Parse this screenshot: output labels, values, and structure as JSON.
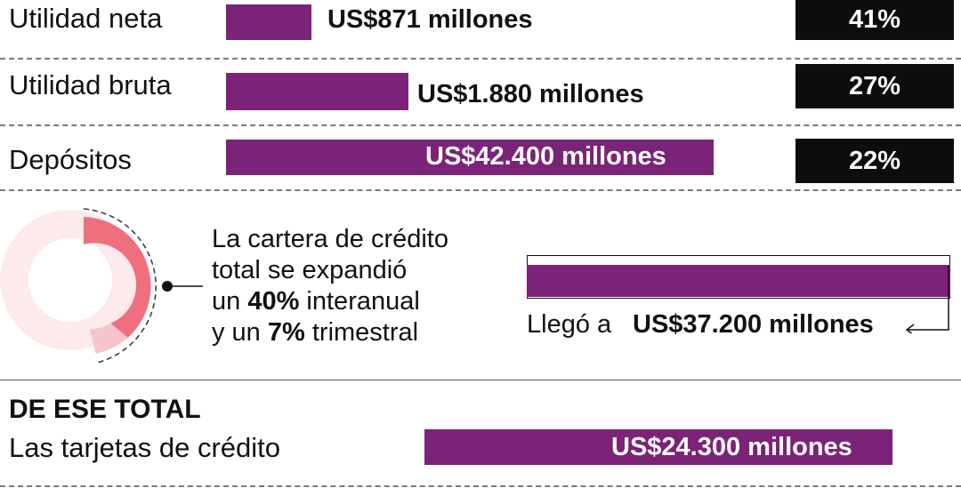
{
  "chart_data": [
    {
      "type": "bar",
      "categories": [
        "Utilidad neta",
        "Utilidad bruta",
        "Depósitos"
      ],
      "values": [
        871,
        1880,
        42400
      ],
      "value_labels": [
        "US$871 millones",
        "US$1.880 millones",
        "US$42.400 millones"
      ],
      "growth_labels": [
        "41%",
        "27%",
        "22%"
      ],
      "bar_color": "#7b2378",
      "badge_color": "#0d0d0d"
    },
    {
      "type": "pie",
      "slices": [
        {
          "name": "",
          "value": 40,
          "color": "#ef6f7e"
        },
        {
          "name": "",
          "value": 7,
          "color": "#f6c5c9"
        },
        {
          "name": "",
          "value": 53,
          "color": "#fdeaea"
        }
      ],
      "note": {
        "line1": "La cartera de crédito",
        "line2": "total se expandió",
        "line3_pre": "un ",
        "line3_bold": "40%",
        "line3_post": " interanual",
        "line4_pre": "y un ",
        "line4_bold": "7%",
        "line4_post": " trimestral"
      },
      "portfolio": {
        "value": 37200,
        "prefix": "Llegó a",
        "label": "US$37.200 millones"
      }
    },
    {
      "type": "bar",
      "section_title": "DE ESE TOTAL",
      "categories": [
        "Las tarjetas de crédito"
      ],
      "values": [
        24300
      ],
      "value_labels": [
        "US$24.300 millones"
      ],
      "bar_color": "#7b2378"
    }
  ]
}
